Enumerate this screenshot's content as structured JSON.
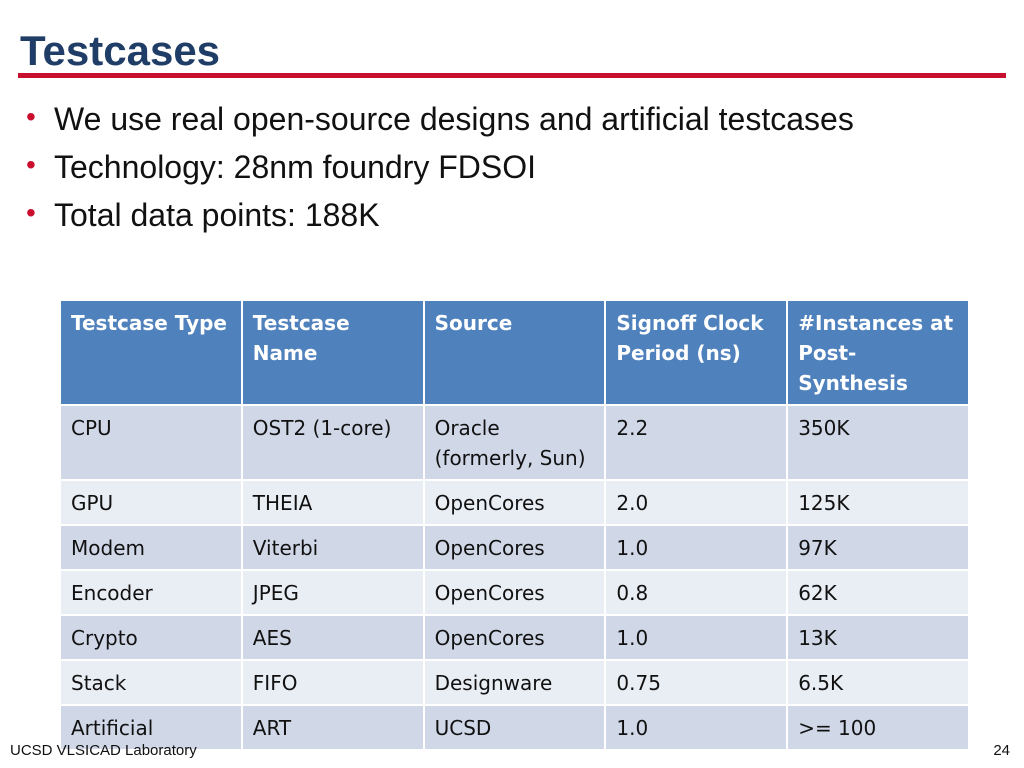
{
  "slide": {
    "title": "Testcases",
    "colors": {
      "title": "#1f3d66",
      "rule": "#c8102e",
      "bullet": "#c8102e",
      "table_header": "#4f81bd",
      "table_row_odd": "#d0d8e8",
      "table_row_even": "#e9edf4"
    }
  },
  "bullets": [
    "We use real open-source designs and artificial testcases",
    "Technology: 28nm foundry FDSOI",
    "Total data points: 188K"
  ],
  "table": {
    "headers": [
      "Testcase Type",
      "Testcase Name",
      "Source",
      "Signoff Clock Period (ns)",
      "#Instances at Post-Synthesis"
    ],
    "rows": [
      [
        "CPU",
        "OST2 (1-core)",
        "Oracle (formerly, Sun)",
        "2.2",
        "350K"
      ],
      [
        "GPU",
        "THEIA",
        "OpenCores",
        "2.0",
        "125K"
      ],
      [
        "Modem",
        "Viterbi",
        "OpenCores",
        "1.0",
        "97K"
      ],
      [
        "Encoder",
        "JPEG",
        "OpenCores",
        "0.8",
        "62K"
      ],
      [
        "Crypto",
        "AES",
        "OpenCores",
        "1.0",
        "13K"
      ],
      [
        "Stack",
        "FIFO",
        "Designware",
        "0.75",
        "6.5K"
      ],
      [
        "Artificial",
        "ART",
        "UCSD",
        "1.0",
        ">= 100"
      ]
    ]
  },
  "footer": {
    "lab": "UCSD VLSICAD Laboratory",
    "page_number": "24"
  }
}
